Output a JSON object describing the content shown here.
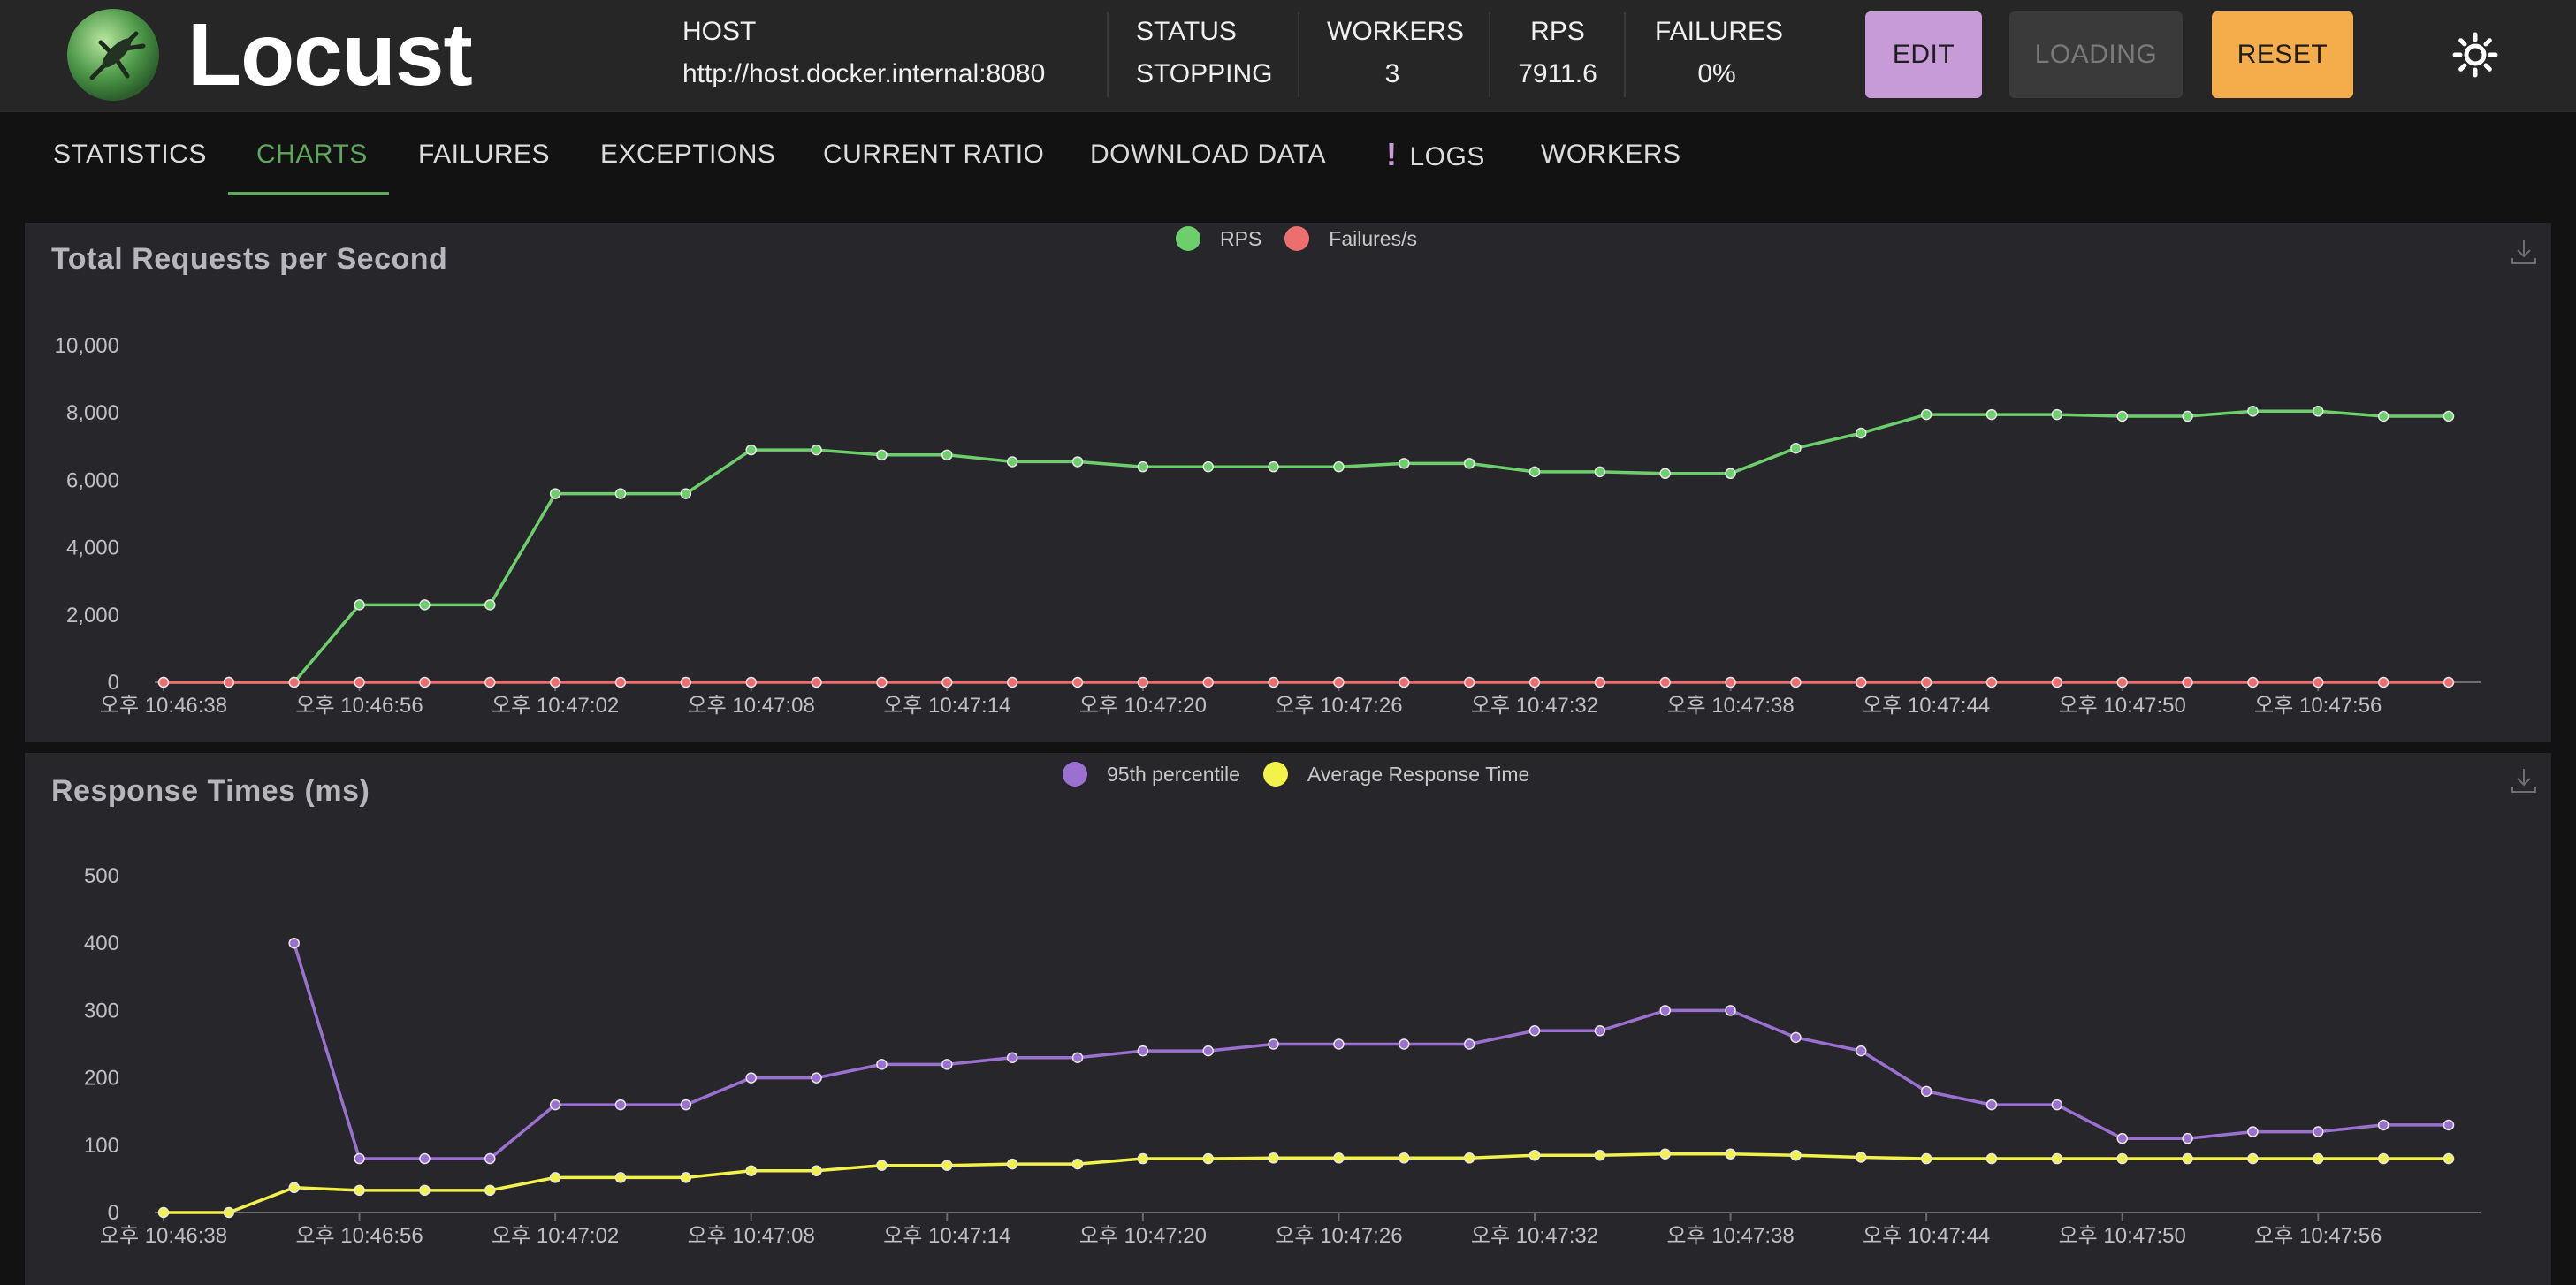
{
  "header": {
    "brand": "Locust",
    "host": {
      "label": "HOST",
      "value": "http://host.docker.internal:8080"
    },
    "status": {
      "label": "STATUS",
      "value": "STOPPING"
    },
    "workers": {
      "label": "WORKERS",
      "value": "3"
    },
    "rps": {
      "label": "RPS",
      "value": "7911.6"
    },
    "failures": {
      "label": "FAILURES",
      "value": "0%"
    },
    "buttons": {
      "edit": "EDIT",
      "loading": "LOADING",
      "reset": "RESET"
    },
    "theme_icon": "sun-icon"
  },
  "tabs": [
    "STATISTICS",
    "CHARTS",
    "FAILURES",
    "EXCEPTIONS",
    "CURRENT RATIO",
    "DOWNLOAD DATA",
    "LOGS",
    "WORKERS"
  ],
  "active_tab": "CHARTS",
  "colors": {
    "rps": "#6ccf6c",
    "failures": "#ec6e6e",
    "p95": "#9a71d1",
    "avg": "#f2f24a",
    "accent": "#5ea85e"
  },
  "chart_data": [
    {
      "type": "line",
      "title": "Total Requests per Second",
      "x": [
        "오후 10:46:38",
        "오후 10:46:41",
        "오후 10:46:53",
        "오후 10:46:56",
        "오후 10:46:58",
        "오후 10:47:01",
        "오후 10:47:02",
        "오후 10:47:04",
        "오후 10:47:06",
        "오후 10:47:08",
        "오후 10:47:10",
        "오후 10:47:12",
        "오후 10:47:14",
        "오후 10:47:16",
        "오후 10:47:18",
        "오후 10:47:20",
        "오후 10:47:22",
        "오후 10:47:24",
        "오후 10:47:26",
        "오후 10:47:28",
        "오후 10:47:30",
        "오후 10:47:32",
        "오후 10:47:34",
        "오후 10:47:36",
        "오후 10:47:38",
        "오후 10:47:40",
        "오후 10:47:42",
        "오후 10:47:44",
        "오후 10:47:46",
        "오후 10:47:48",
        "오후 10:47:50",
        "오후 10:47:52",
        "오후 10:47:54",
        "오후 10:47:56",
        "오후 10:47:58",
        "오후 10:48:00"
      ],
      "xticks": [
        "오후 10:46:38",
        "오후 10:46:56",
        "오후 10:47:02",
        "오후 10:47:08",
        "오후 10:47:14",
        "오후 10:47:20",
        "오후 10:47:26",
        "오후 10:47:32",
        "오후 10:47:38",
        "오후 10:47:44",
        "오후 10:47:50",
        "오후 10:47:56"
      ],
      "yticks": [
        "0",
        "2,000",
        "4,000",
        "6,000",
        "8,000",
        "10,000"
      ],
      "ylim": [
        0,
        10000
      ],
      "series": [
        {
          "name": "RPS",
          "color": "#6ccf6c",
          "values": [
            0,
            0,
            0,
            2300,
            2300,
            2300,
            5600,
            5600,
            5600,
            6900,
            6900,
            6750,
            6750,
            6550,
            6550,
            6400,
            6400,
            6400,
            6400,
            6500,
            6500,
            6250,
            6250,
            6200,
            6200,
            6950,
            7400,
            7950,
            7950,
            7950,
            7900,
            7900,
            8050,
            8050,
            7900,
            7900
          ]
        },
        {
          "name": "Failures/s",
          "color": "#ec6e6e",
          "values": [
            0,
            0,
            0,
            0,
            0,
            0,
            0,
            0,
            0,
            0,
            0,
            0,
            0,
            0,
            0,
            0,
            0,
            0,
            0,
            0,
            0,
            0,
            0,
            0,
            0,
            0,
            0,
            0,
            0,
            0,
            0,
            0,
            0,
            0,
            0,
            0
          ]
        }
      ]
    },
    {
      "type": "line",
      "title": "Response Times (ms)",
      "x": [
        "오후 10:46:38",
        "오후 10:46:41",
        "오후 10:46:53",
        "오후 10:46:56",
        "오후 10:46:58",
        "오후 10:47:01",
        "오후 10:47:02",
        "오후 10:47:04",
        "오후 10:47:06",
        "오후 10:47:08",
        "오후 10:47:10",
        "오후 10:47:12",
        "오후 10:47:14",
        "오후 10:47:16",
        "오후 10:47:18",
        "오후 10:47:20",
        "오후 10:47:22",
        "오후 10:47:24",
        "오후 10:47:26",
        "오후 10:47:28",
        "오후 10:47:30",
        "오후 10:47:32",
        "오후 10:47:34",
        "오후 10:47:36",
        "오후 10:47:38",
        "오후 10:47:40",
        "오후 10:47:42",
        "오후 10:47:44",
        "오후 10:47:46",
        "오후 10:47:48",
        "오후 10:47:50",
        "오후 10:47:52",
        "오후 10:47:54",
        "오후 10:47:56",
        "오후 10:47:58",
        "오후 10:48:00"
      ],
      "xticks": [
        "오후 10:46:38",
        "오후 10:46:56",
        "오후 10:47:02",
        "오후 10:47:08",
        "오후 10:47:14",
        "오후 10:47:20",
        "오후 10:47:26",
        "오후 10:47:32",
        "오후 10:47:38",
        "오후 10:47:44",
        "오후 10:47:50",
        "오후 10:47:56"
      ],
      "yticks": [
        "0",
        "100",
        "200",
        "300",
        "400",
        "500"
      ],
      "ylim": [
        0,
        500
      ],
      "series": [
        {
          "name": "95th percentile",
          "color": "#9a71d1",
          "values": [
            null,
            null,
            400,
            80,
            80,
            80,
            160,
            160,
            160,
            200,
            200,
            220,
            220,
            230,
            230,
            240,
            240,
            250,
            250,
            250,
            250,
            270,
            270,
            300,
            300,
            260,
            240,
            180,
            160,
            160,
            110,
            110,
            120,
            120,
            130,
            130
          ]
        },
        {
          "name": "Average Response Time",
          "color": "#f2f24a",
          "values": [
            0,
            0,
            37,
            33,
            33,
            33,
            52,
            52,
            52,
            62,
            62,
            70,
            70,
            72,
            72,
            80,
            80,
            81,
            81,
            81,
            81,
            85,
            85,
            87,
            87,
            85,
            82,
            80,
            80,
            80,
            80,
            80,
            80,
            80,
            80,
            80
          ]
        }
      ]
    }
  ]
}
